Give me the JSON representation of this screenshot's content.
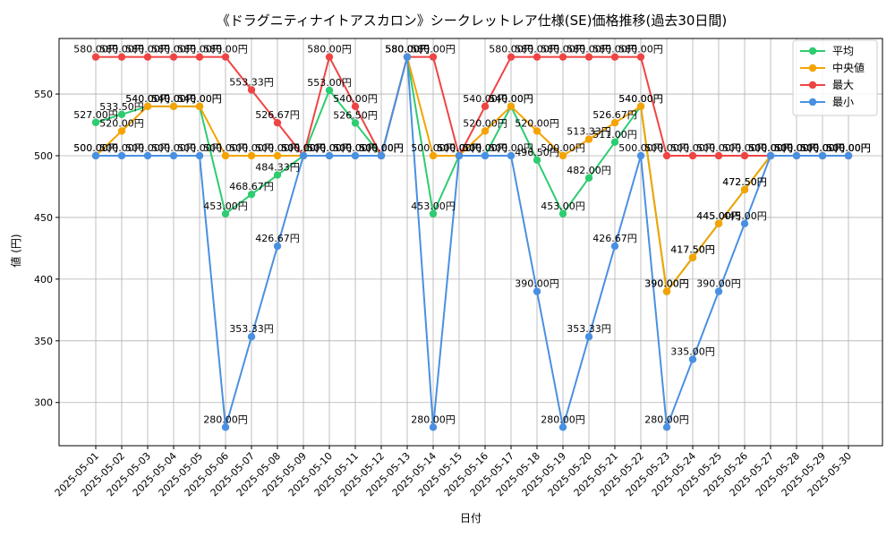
{
  "chart_data": {
    "type": "line",
    "title": "《ドラグニティナイトアスカロン》シークレットレア仕様(SE)価格推移(過去30日間)",
    "xlabel": "日付",
    "ylabel": "値 (円)",
    "ylim": [
      265,
      595
    ],
    "yticks": [
      300,
      350,
      400,
      450,
      500,
      550
    ],
    "grid": true,
    "legend_position": "top-right",
    "value_suffix": "円",
    "categories": [
      "2025-05-01",
      "2025-05-02",
      "2025-05-03",
      "2025-05-04",
      "2025-05-05",
      "2025-05-06",
      "2025-05-07",
      "2025-05-08",
      "2025-05-09",
      "2025-05-10",
      "2025-05-11",
      "2025-05-12",
      "2025-05-13",
      "2025-05-14",
      "2025-05-15",
      "2025-05-16",
      "2025-05-17",
      "2025-05-18",
      "2025-05-19",
      "2025-05-20",
      "2025-05-21",
      "2025-05-22",
      "2025-05-23",
      "2025-05-24",
      "2025-05-25",
      "2025-05-26",
      "2025-05-27",
      "2025-05-28",
      "2025-05-29",
      "2025-05-30"
    ],
    "series": [
      {
        "name": "平均",
        "color": "#2ecc71",
        "values": [
          527.0,
          533.5,
          540.0,
          540.0,
          540.0,
          453.0,
          468.67,
          484.33,
          500.0,
          553.0,
          526.5,
          500.0,
          580.0,
          453.0,
          500.0,
          500.0,
          540.0,
          496.5,
          453.0,
          482.0,
          511.0,
          540.0,
          390.0,
          417.5,
          445.0,
          472.5,
          500.0,
          500.0,
          500.0,
          500.0
        ]
      },
      {
        "name": "中央値",
        "color": "#f5a300",
        "values": [
          500.0,
          520.0,
          540.0,
          540.0,
          540.0,
          500.0,
          500.0,
          500.0,
          500.0,
          500.0,
          500.0,
          500.0,
          580.0,
          500.0,
          500.0,
          520.0,
          540.0,
          520.0,
          500.0,
          513.33,
          526.67,
          540.0,
          390.0,
          417.5,
          445.0,
          472.5,
          500.0,
          500.0,
          500.0,
          500.0
        ]
      },
      {
        "name": "最大",
        "color": "#ef4444",
        "values": [
          580.0,
          580.0,
          580.0,
          580.0,
          580.0,
          580.0,
          553.33,
          526.67,
          500.0,
          580.0,
          540.0,
          500.0,
          580.0,
          580.0,
          500.0,
          540.0,
          580.0,
          580.0,
          580.0,
          580.0,
          580.0,
          580.0,
          500.0,
          500.0,
          500.0,
          500.0,
          500.0,
          500.0,
          500.0,
          500.0
        ]
      },
      {
        "name": "最小",
        "color": "#4a90e2",
        "values": [
          500.0,
          500.0,
          500.0,
          500.0,
          500.0,
          280.0,
          353.33,
          426.67,
          500.0,
          500.0,
          500.0,
          500.0,
          580.0,
          280.0,
          500.0,
          500.0,
          500.0,
          390.0,
          280.0,
          353.33,
          426.67,
          500.0,
          280.0,
          335.0,
          390.0,
          445.0,
          500.0,
          500.0,
          500.0,
          500.0
        ]
      }
    ]
  }
}
